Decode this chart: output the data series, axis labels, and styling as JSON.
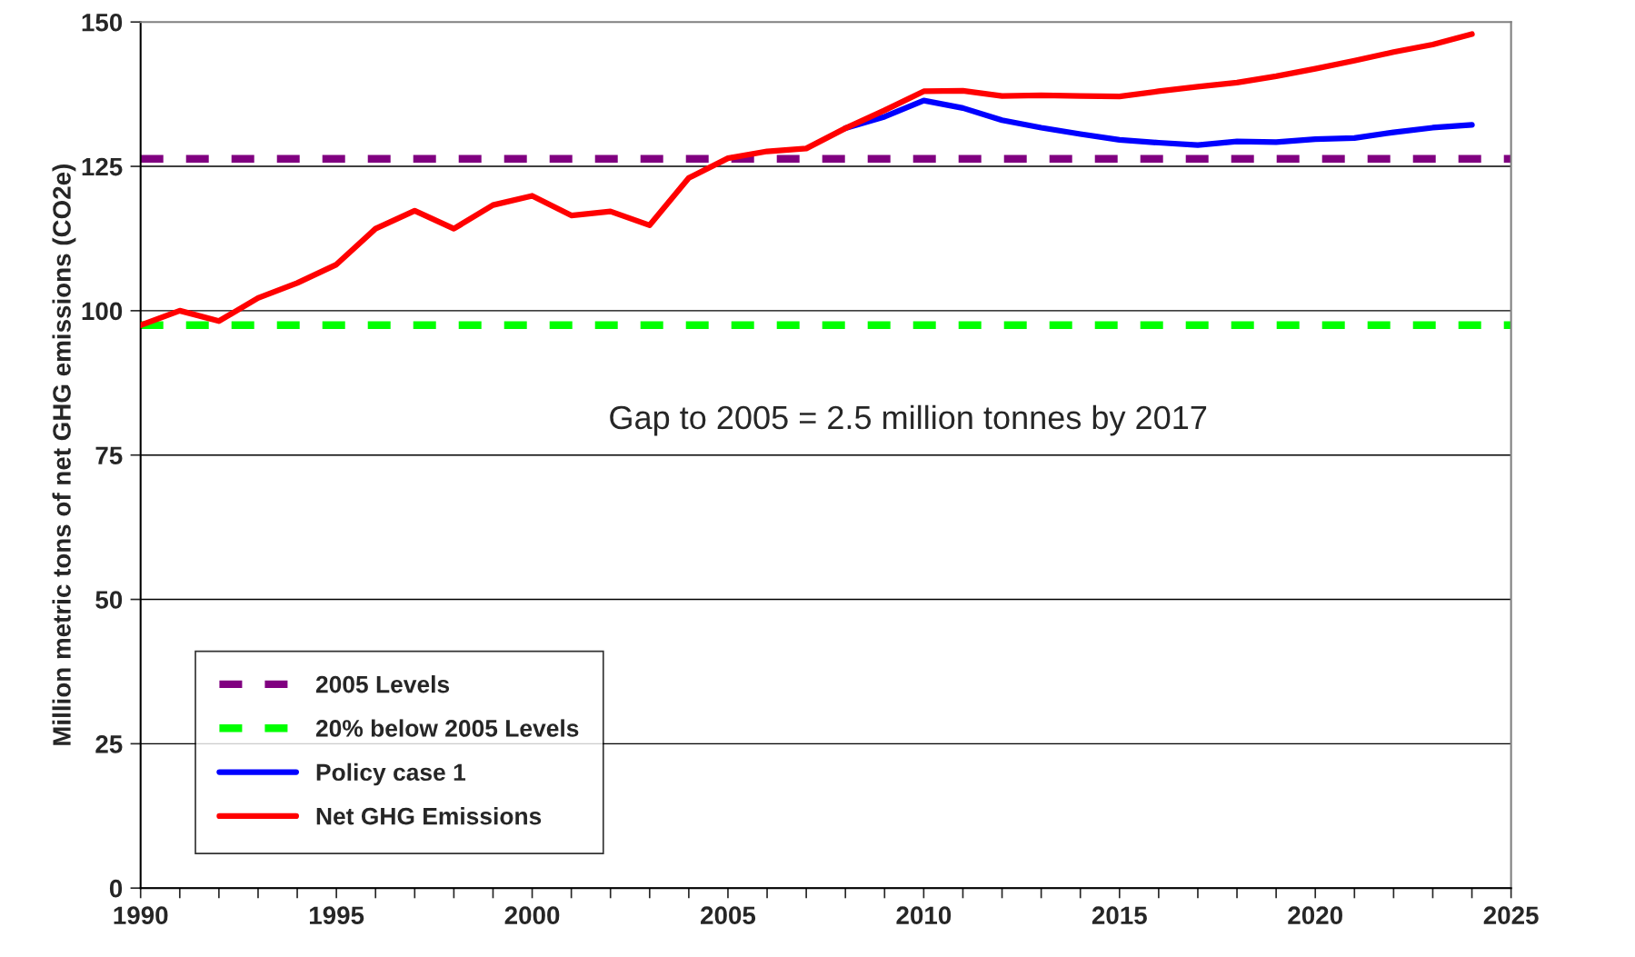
{
  "chart_data": {
    "type": "line",
    "ylabel": "Million metric tons of net GHG emissions (CO2e)",
    "xlim": [
      1990,
      2025
    ],
    "xticks": [
      1990,
      {
        "value": 1991,
        "label": null
      },
      {
        "value": 1992,
        "label": null
      },
      {
        "value": 1993,
        "label": null
      },
      {
        "value": 1994,
        "label": null
      },
      1995,
      {
        "value": 1996,
        "label": null
      },
      {
        "value": 1997,
        "label": null
      },
      {
        "value": 1998,
        "label": null
      },
      {
        "value": 1999,
        "label": null
      },
      2000,
      {
        "value": 2001,
        "label": null
      },
      {
        "value": 2002,
        "label": null
      },
      {
        "value": 2003,
        "label": null
      },
      {
        "value": 2004,
        "label": null
      },
      2005,
      {
        "value": 2006,
        "label": null
      },
      {
        "value": 2007,
        "label": null
      },
      {
        "value": 2008,
        "label": null
      },
      {
        "value": 2009,
        "label": null
      },
      2010,
      {
        "value": 2011,
        "label": null
      },
      {
        "value": 2012,
        "label": null
      },
      {
        "value": 2013,
        "label": null
      },
      {
        "value": 2014,
        "label": null
      },
      2015,
      {
        "value": 2016,
        "label": null
      },
      {
        "value": 2017,
        "label": null
      },
      {
        "value": 2018,
        "label": null
      },
      {
        "value": 2019,
        "label": null
      },
      2020,
      {
        "value": 2021,
        "label": null
      },
      {
        "value": 2022,
        "label": null
      },
      {
        "value": 2023,
        "label": null
      },
      {
        "value": 2024,
        "label": null
      },
      2025
    ],
    "ylim": [
      0,
      150
    ],
    "yticks": [
      0,
      25,
      50,
      75,
      100,
      125,
      150
    ],
    "grid": "y",
    "legend": "bottom left",
    "marker": "none",
    "line_style": "solid",
    "ref_lines": [
      {
        "axis": "y",
        "value": 126.3,
        "label": "2005 Levels",
        "color": "#800080",
        "line_style": "dashed"
      },
      {
        "axis": "y",
        "value": 97.5,
        "label": "20% below 2005 Levels",
        "color": "#00ff00",
        "line_style": "dashed"
      }
    ],
    "series": [
      {
        "name": "Policy case 1",
        "color": "#0000ff",
        "x": [
          2008,
          2009,
          2010,
          2011,
          2012,
          2013,
          2014,
          2015,
          2016,
          2017,
          2018,
          2019,
          2020,
          2021,
          2022,
          2023,
          2024
        ],
        "values": [
          131.6,
          133.6,
          136.4,
          135.1,
          133,
          131.7,
          130.6,
          129.6,
          129.1,
          128.7,
          129.3,
          129.2,
          129.7,
          129.9,
          130.9,
          131.7,
          132.2
        ]
      },
      {
        "name": "Net GHG Emissions",
        "color": "#ff0000",
        "x": [
          1990,
          1991,
          1992,
          1993,
          1994,
          1995,
          1996,
          1997,
          1998,
          1999,
          2000,
          2001,
          2002,
          2003,
          2004,
          2005,
          2006,
          2007,
          2008,
          2009,
          2010,
          2011,
          2012,
          2013,
          2014,
          2015,
          2016,
          2017,
          2018,
          2019,
          2020,
          2021,
          2022,
          2023,
          2024
        ],
        "values": [
          97.5,
          100,
          98.2,
          102.2,
          104.8,
          108,
          114.2,
          117.3,
          114.2,
          118.3,
          119.9,
          116.5,
          117.2,
          114.8,
          123,
          126.4,
          127.6,
          128.1,
          131.6,
          134.7,
          138,
          138.1,
          137.2,
          137.3,
          137.2,
          137.1,
          138,
          138.8,
          139.5,
          140.6,
          141.9,
          143.3,
          144.8,
          146.1,
          147.9
        ]
      }
    ],
    "annotations": [
      "Gap to 2005 = 2.5 million tonnes by 2017"
    ]
  }
}
